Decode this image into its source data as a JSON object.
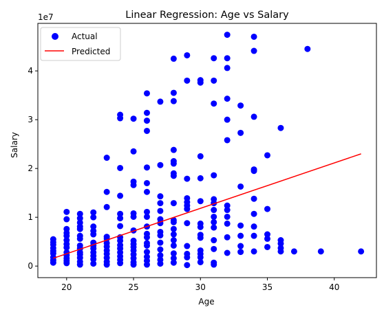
{
  "chart_data": {
    "type": "scatter",
    "title": "Linear Regression: Age vs Salary",
    "xlabel": "Age",
    "ylabel": "Salary",
    "y_offset_label": "1e7",
    "xlim": [
      17.85,
      43.15
    ],
    "ylim": [
      -2370000,
      49740000
    ],
    "xticks": [
      20,
      25,
      30,
      35,
      40
    ],
    "yticks": [
      0,
      10000000,
      20000000,
      30000000,
      40000000
    ],
    "ytick_labels": [
      "0",
      "1",
      "2",
      "3",
      "4"
    ],
    "legend": {
      "placement": "upper-left",
      "entries": [
        "Actual",
        "Predicted"
      ]
    },
    "colors": {
      "actual": "#0000ff",
      "predicted": "#ff0000"
    },
    "series": [
      {
        "name": "Actual",
        "kind": "scatter",
        "points": [
          [
            19,
            5500000
          ],
          [
            19,
            4900000
          ],
          [
            19,
            4400000
          ],
          [
            19,
            3700000
          ],
          [
            19,
            3100000
          ],
          [
            19,
            2600000
          ],
          [
            19,
            1800000
          ],
          [
            19,
            1200000
          ],
          [
            19,
            700000
          ],
          [
            20,
            11100000
          ],
          [
            20,
            9600000
          ],
          [
            20,
            7600000
          ],
          [
            20,
            6800000
          ],
          [
            20,
            6200000
          ],
          [
            20,
            5300000
          ],
          [
            20,
            4500000
          ],
          [
            20,
            3800000
          ],
          [
            20,
            2800000
          ],
          [
            20,
            2200000
          ],
          [
            20,
            1600000
          ],
          [
            20,
            1100000
          ],
          [
            20,
            600000
          ],
          [
            21,
            10700000
          ],
          [
            21,
            9800000
          ],
          [
            21,
            8900000
          ],
          [
            21,
            8100000
          ],
          [
            21,
            7600000
          ],
          [
            21,
            6200000
          ],
          [
            21,
            5600000
          ],
          [
            21,
            4200000
          ],
          [
            21,
            3600000
          ],
          [
            21,
            2800000
          ],
          [
            21,
            2400000
          ],
          [
            21,
            1700000
          ],
          [
            21,
            900000
          ],
          [
            21,
            300000
          ],
          [
            22,
            11000000
          ],
          [
            22,
            10000000
          ],
          [
            22,
            8100000
          ],
          [
            22,
            7200000
          ],
          [
            22,
            6500000
          ],
          [
            22,
            4800000
          ],
          [
            22,
            4200000
          ],
          [
            22,
            3600000
          ],
          [
            22,
            2800000
          ],
          [
            22,
            2100000
          ],
          [
            22,
            1400000
          ],
          [
            22,
            500000
          ],
          [
            23,
            22200000
          ],
          [
            23,
            15200000
          ],
          [
            23,
            12100000
          ],
          [
            23,
            6000000
          ],
          [
            23,
            5600000
          ],
          [
            23,
            4700000
          ],
          [
            23,
            4000000
          ],
          [
            23,
            3200000
          ],
          [
            23,
            2500000
          ],
          [
            23,
            1700000
          ],
          [
            23,
            900000
          ],
          [
            23,
            300000
          ],
          [
            24,
            31000000
          ],
          [
            24,
            30300000
          ],
          [
            24,
            20100000
          ],
          [
            24,
            14400000
          ],
          [
            24,
            10700000
          ],
          [
            24,
            9800000
          ],
          [
            24,
            8200000
          ],
          [
            24,
            5900000
          ],
          [
            24,
            5200000
          ],
          [
            24,
            4300000
          ],
          [
            24,
            3600000
          ],
          [
            24,
            2800000
          ],
          [
            24,
            2000000
          ],
          [
            24,
            1300000
          ],
          [
            24,
            600000
          ],
          [
            25,
            30200000
          ],
          [
            25,
            23500000
          ],
          [
            25,
            17300000
          ],
          [
            25,
            16600000
          ],
          [
            25,
            10800000
          ],
          [
            25,
            10100000
          ],
          [
            25,
            7300000
          ],
          [
            25,
            5200000
          ],
          [
            25,
            4500000
          ],
          [
            25,
            3900000
          ],
          [
            25,
            3200000
          ],
          [
            25,
            2400000
          ],
          [
            25,
            1600000
          ],
          [
            25,
            800000
          ],
          [
            25,
            300000
          ],
          [
            26,
            35400000
          ],
          [
            26,
            31400000
          ],
          [
            26,
            29800000
          ],
          [
            26,
            27700000
          ],
          [
            26,
            20200000
          ],
          [
            26,
            17000000
          ],
          [
            26,
            15200000
          ],
          [
            26,
            11100000
          ],
          [
            26,
            10100000
          ],
          [
            26,
            8100000
          ],
          [
            26,
            6600000
          ],
          [
            26,
            5900000
          ],
          [
            26,
            4700000
          ],
          [
            26,
            4200000
          ],
          [
            26,
            2900000
          ],
          [
            26,
            1900000
          ],
          [
            26,
            1100000
          ],
          [
            26,
            300000
          ],
          [
            27,
            33700000
          ],
          [
            27,
            20700000
          ],
          [
            27,
            14300000
          ],
          [
            27,
            12900000
          ],
          [
            27,
            11300000
          ],
          [
            27,
            9600000
          ],
          [
            27,
            8800000
          ],
          [
            27,
            7000000
          ],
          [
            27,
            6300000
          ],
          [
            27,
            4800000
          ],
          [
            27,
            3400000
          ],
          [
            27,
            2200000
          ],
          [
            27,
            1300000
          ],
          [
            27,
            500000
          ],
          [
            28,
            42500000
          ],
          [
            28,
            35500000
          ],
          [
            28,
            33800000
          ],
          [
            28,
            23800000
          ],
          [
            28,
            21500000
          ],
          [
            28,
            21000000
          ],
          [
            28,
            19000000
          ],
          [
            28,
            18500000
          ],
          [
            28,
            12900000
          ],
          [
            28,
            9400000
          ],
          [
            28,
            9000000
          ],
          [
            28,
            7600000
          ],
          [
            28,
            6500000
          ],
          [
            28,
            5300000
          ],
          [
            28,
            4200000
          ],
          [
            28,
            2600000
          ],
          [
            28,
            1600000
          ],
          [
            28,
            700000
          ],
          [
            29,
            43200000
          ],
          [
            29,
            38000000
          ],
          [
            29,
            17900000
          ],
          [
            29,
            13900000
          ],
          [
            29,
            13100000
          ],
          [
            29,
            12400000
          ],
          [
            29,
            11700000
          ],
          [
            29,
            8800000
          ],
          [
            29,
            4100000
          ],
          [
            29,
            2500000
          ],
          [
            29,
            1800000
          ],
          [
            29,
            200000
          ],
          [
            30,
            38100000
          ],
          [
            30,
            37600000
          ],
          [
            30,
            22500000
          ],
          [
            30,
            18000000
          ],
          [
            30,
            13300000
          ],
          [
            30,
            8700000
          ],
          [
            30,
            8000000
          ],
          [
            30,
            6400000
          ],
          [
            30,
            5800000
          ],
          [
            30,
            3200000
          ],
          [
            30,
            2500000
          ],
          [
            30,
            1800000
          ],
          [
            30,
            800000
          ],
          [
            31,
            42600000
          ],
          [
            31,
            38000000
          ],
          [
            31,
            33300000
          ],
          [
            31,
            18600000
          ],
          [
            31,
            13700000
          ],
          [
            31,
            12900000
          ],
          [
            31,
            11500000
          ],
          [
            31,
            10100000
          ],
          [
            31,
            9000000
          ],
          [
            31,
            7900000
          ],
          [
            31,
            5300000
          ],
          [
            31,
            3500000
          ],
          [
            31,
            700000
          ],
          [
            31,
            300000
          ],
          [
            32,
            47400000
          ],
          [
            32,
            42600000
          ],
          [
            32,
            40600000
          ],
          [
            32,
            34300000
          ],
          [
            32,
            30000000
          ],
          [
            32,
            25800000
          ],
          [
            32,
            12400000
          ],
          [
            32,
            11500000
          ],
          [
            32,
            10100000
          ],
          [
            32,
            8700000
          ],
          [
            32,
            5900000
          ],
          [
            32,
            2700000
          ],
          [
            33,
            32900000
          ],
          [
            33,
            27300000
          ],
          [
            33,
            16300000
          ],
          [
            33,
            8300000
          ],
          [
            33,
            6200000
          ],
          [
            33,
            4100000
          ],
          [
            33,
            2900000
          ],
          [
            34,
            47000000
          ],
          [
            34,
            44100000
          ],
          [
            34,
            30600000
          ],
          [
            34,
            19800000
          ],
          [
            34,
            19500000
          ],
          [
            34,
            13800000
          ],
          [
            34,
            10700000
          ],
          [
            34,
            8100000
          ],
          [
            34,
            6200000
          ],
          [
            34,
            3000000
          ],
          [
            35,
            22700000
          ],
          [
            35,
            11700000
          ],
          [
            35,
            6500000
          ],
          [
            35,
            5600000
          ],
          [
            35,
            3900000
          ],
          [
            36,
            28300000
          ],
          [
            36,
            5300000
          ],
          [
            36,
            4600000
          ],
          [
            36,
            3700000
          ],
          [
            36,
            3000000
          ],
          [
            37,
            3000000
          ],
          [
            38,
            44500000
          ],
          [
            39,
            3000000
          ],
          [
            42,
            3000000
          ]
        ]
      },
      {
        "name": "Predicted",
        "kind": "line",
        "points": [
          [
            19,
            1600000
          ],
          [
            42,
            23000000
          ]
        ]
      }
    ]
  }
}
